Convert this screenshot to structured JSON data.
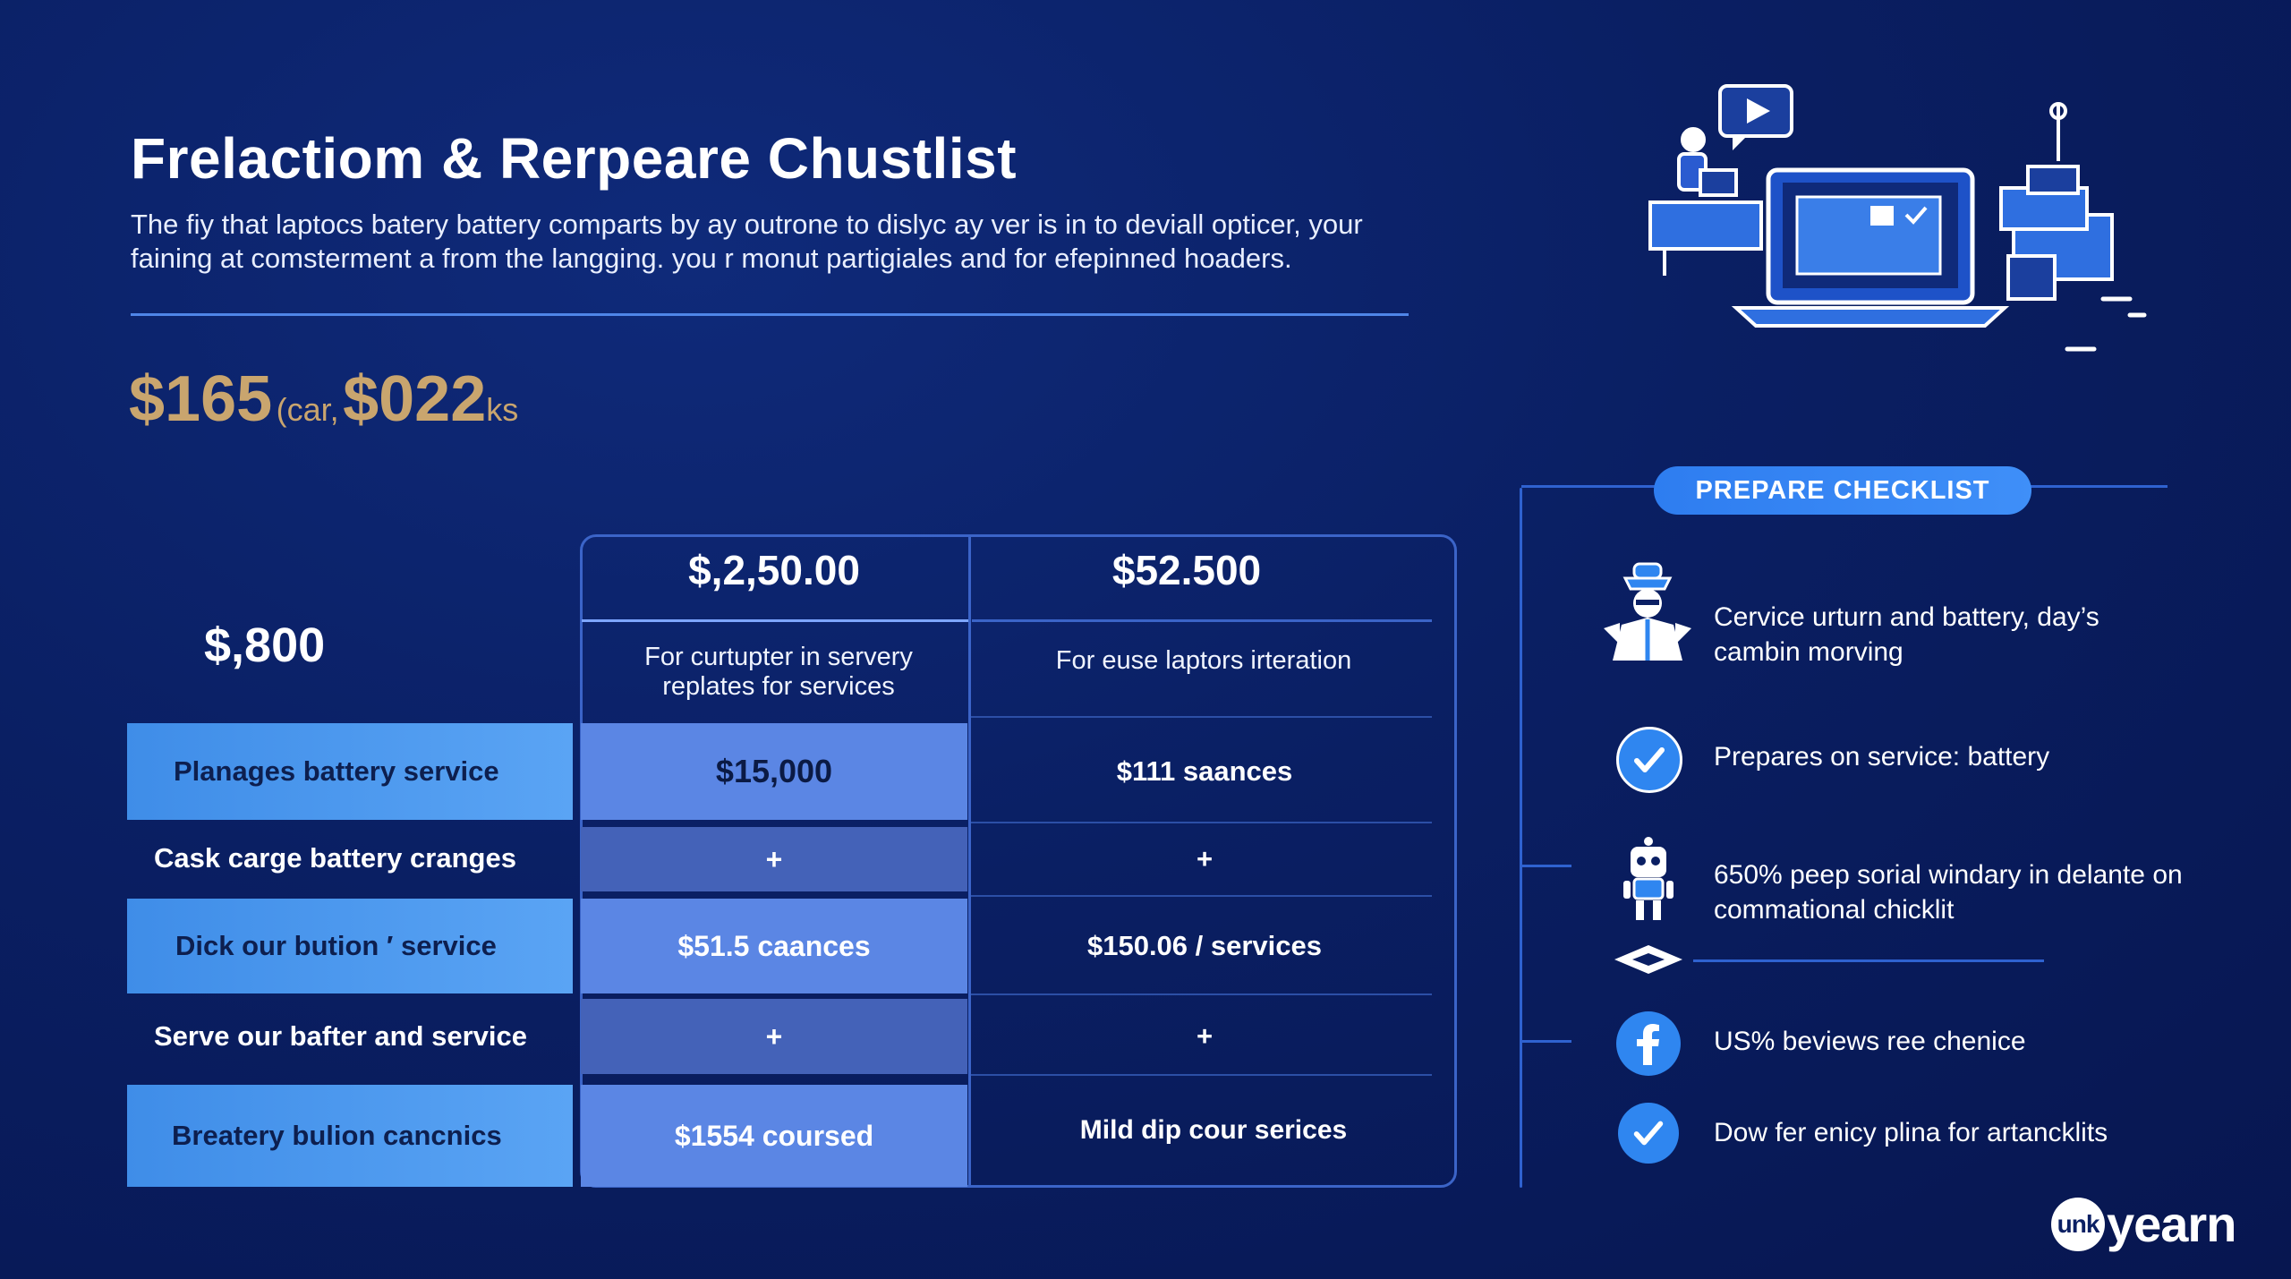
{
  "header": {
    "title": "Frelactiom & Rerpeare Chustlist",
    "subtitle": "The fiy that laptocs batery battery comparts by ay outrone to dislyc ay ver is in to deviall opticer, your faining at comsterment a from the langging. you r monut partigiales and for efepinned hoaders."
  },
  "price_row": {
    "price_1": "$165",
    "note_1": "(car,",
    "price_2": "$022",
    "note_2": "ks"
  },
  "table": {
    "corner_price": "$,800",
    "columns": [
      {
        "price": "$,2,50.00",
        "description": "For curtupter in servery replates for services"
      },
      {
        "price": "$52.500",
        "description": "For euse laptors irteration"
      }
    ],
    "rows": [
      {
        "label": "Planages battery service",
        "mid": "$15,000",
        "right": "$111 saances"
      },
      {
        "label": "Cask carge battery cranges",
        "mid": "+",
        "right": "+"
      },
      {
        "label": "Dick our bution ′ service",
        "mid": "$51.5 caances",
        "right": "$150.06 / services"
      },
      {
        "label": "Serve our bafter and service",
        "mid": "+",
        "right": "+"
      },
      {
        "label": "Breatery bulion cancnics",
        "mid": "$1554 coursed",
        "right": "Mild dip cour serices"
      }
    ]
  },
  "checklist": {
    "badge": "PREPARE CHECKLIST",
    "items": [
      {
        "icon": "person-icon",
        "text": "Cervice urturn and battery, day’s cambin morving"
      },
      {
        "icon": "check-icon",
        "text": "Prepares on service: battery"
      },
      {
        "icon": "robot-icon",
        "text": "650% peep sorial windary in delante on commational chicklit"
      },
      {
        "icon": "facebook-icon",
        "text": "US% beviews ree chenice"
      },
      {
        "icon": "check-icon",
        "text": "Dow fer enicy plina for artancklits"
      }
    ]
  },
  "brand": {
    "mark": "unk",
    "name": "yearn"
  },
  "colors": {
    "background": "#0a1f63",
    "accent_gold": "#c9a56e",
    "highlight_blue": "#4a97ee",
    "icon_blue": "#2f86f0"
  }
}
